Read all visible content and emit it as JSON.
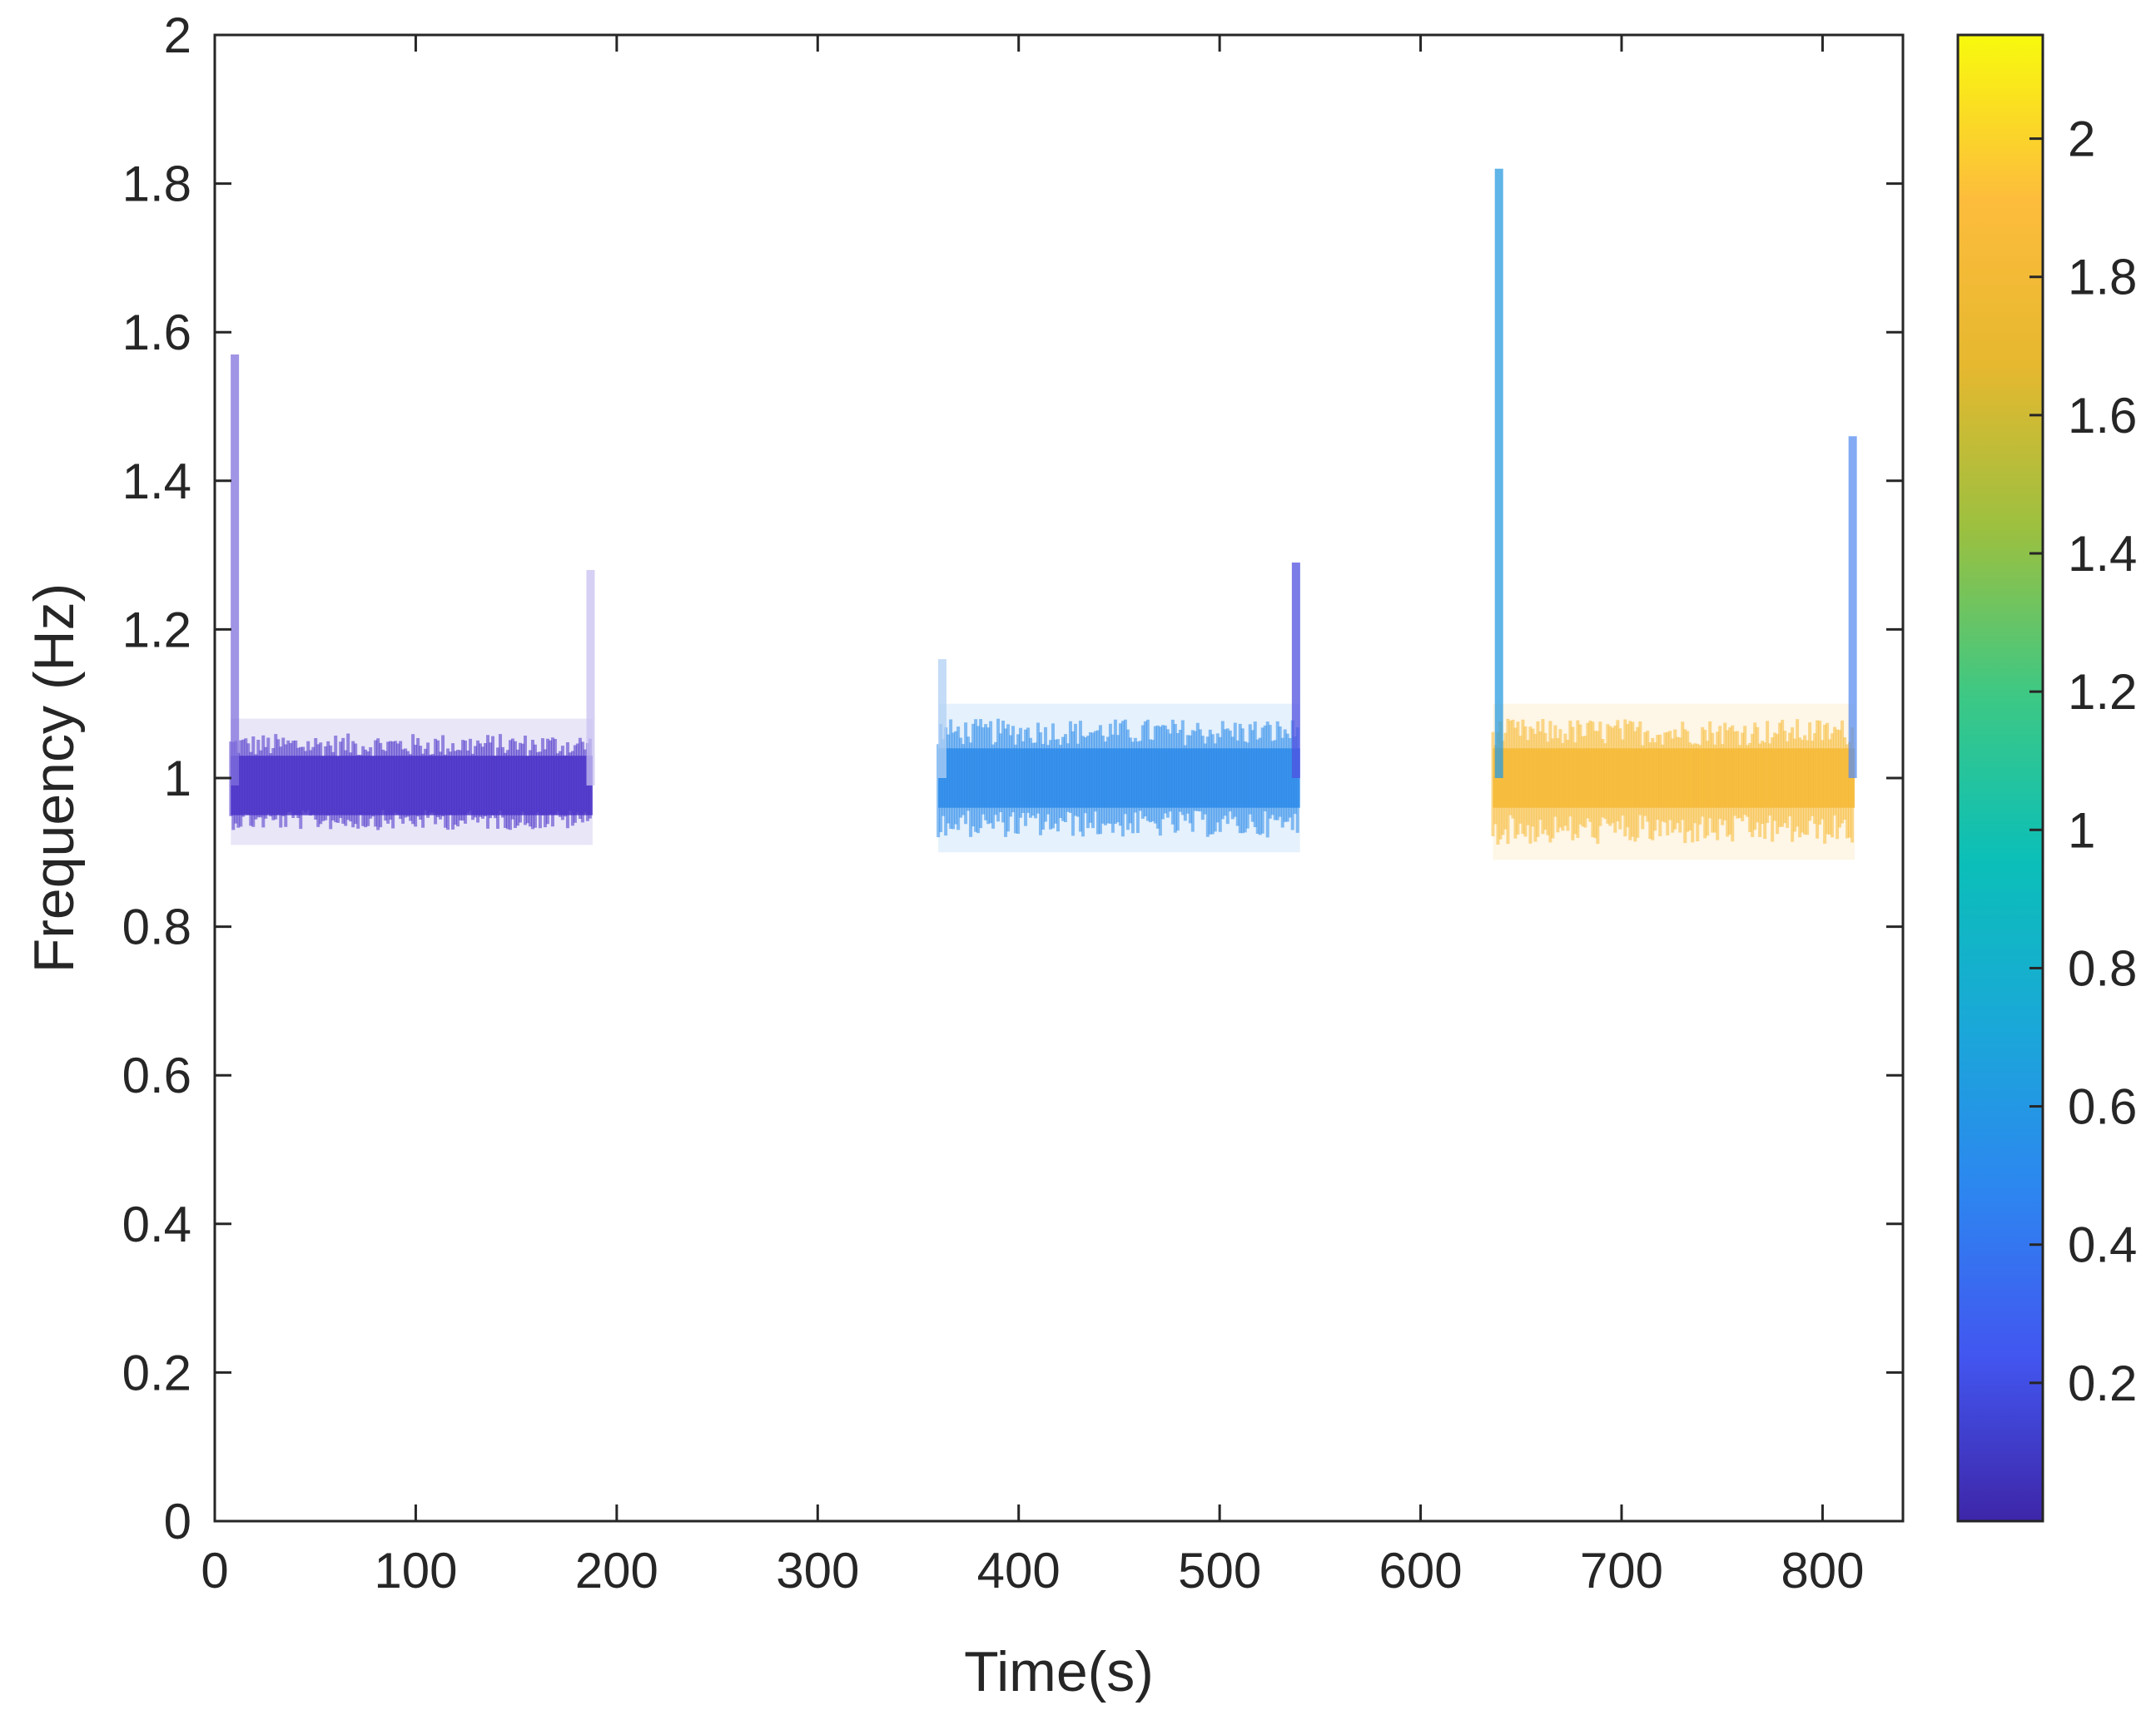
{
  "chart_data": {
    "type": "scatter",
    "title": "",
    "xlabel": "Time(s)",
    "ylabel": "Frequency (Hz)",
    "xlim": [
      0,
      840
    ],
    "ylim": [
      0,
      2
    ],
    "xticks": [
      0,
      100,
      200,
      300,
      400,
      500,
      600,
      700,
      800
    ],
    "xtick_labels": [
      "0",
      "100",
      "200",
      "300",
      "400",
      "500",
      "600",
      "700",
      "800"
    ],
    "yticks": [
      0,
      0.2,
      0.4,
      0.6,
      0.8,
      1,
      1.2,
      1.4,
      1.6,
      1.8,
      2
    ],
    "ytick_labels": [
      "0",
      "0.2",
      "0.4",
      "0.6",
      "0.8",
      "1",
      "1.2",
      "1.4",
      "1.6",
      "1.8",
      "2"
    ],
    "grid": false,
    "colorbar": {
      "colormap": "parula",
      "range": [
        0,
        2.15
      ],
      "ticks": [
        0.2,
        0.4,
        0.6,
        0.8,
        1,
        1.2,
        1.4,
        1.6,
        1.8,
        2
      ],
      "tick_labels": [
        "0.2",
        "0.4",
        "0.6",
        "0.8",
        "1",
        "1.2",
        "1.4",
        "1.6",
        "1.8",
        "2"
      ],
      "colors": [
        "#3e26a8",
        "#4256f0",
        "#2d86f0",
        "#1aa8d8",
        "#0bbfb8",
        "#3dc884",
        "#9bc040",
        "#e6b82f",
        "#fdbc3c",
        "#f8fa0d"
      ]
    },
    "segments": [
      {
        "t_start": 8,
        "t_end": 188,
        "f_center": 0.99,
        "f_low": 0.93,
        "f_high": 1.06,
        "color_value": 0.12,
        "color": "#4a32c8",
        "start_spike": {
          "t": 10,
          "f_max": 1.57,
          "color": "#8070dc"
        },
        "end_spike": {
          "t": 187,
          "f_max": 1.28,
          "color": "#c8c0f0"
        }
      },
      {
        "t_start": 360,
        "t_end": 540,
        "f_center": 1.0,
        "f_low": 0.92,
        "f_high": 1.08,
        "color_value": 0.62,
        "color": "#2b8bea",
        "start_spike": {
          "t": 362,
          "f_max": 1.16,
          "color": "#b0d0f4"
        },
        "end_spike": {
          "t": 538,
          "f_max": 1.29,
          "color": "#5050e0"
        }
      },
      {
        "t_start": 636,
        "t_end": 816,
        "f_center": 1.0,
        "f_low": 0.91,
        "f_high": 1.08,
        "color_value": 1.82,
        "color": "#f5b934",
        "start_spike": {
          "t": 639,
          "f_max": 1.82,
          "color": "#2a9be0"
        },
        "end_spike": {
          "t": 815,
          "f_max": 1.46,
          "color": "#5a8ff0"
        }
      }
    ]
  }
}
